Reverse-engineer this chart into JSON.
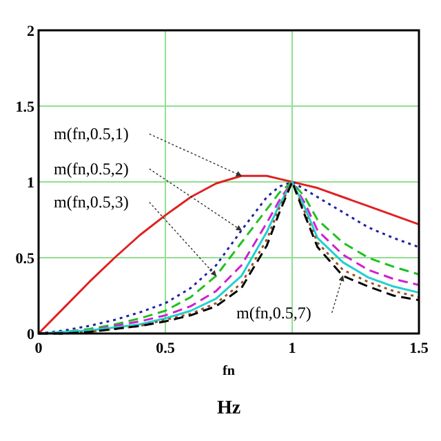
{
  "chart_data": {
    "type": "line",
    "xlabel": "fn",
    "x": [
      0,
      0.1,
      0.2,
      0.3,
      0.4,
      0.5,
      0.6,
      0.7,
      0.8,
      0.9,
      0.95,
      1,
      1.05,
      1.1,
      1.2,
      1.3,
      1.4,
      1.5
    ],
    "xlim": [
      0,
      1.5
    ],
    "xticks": [
      0,
      0.5,
      1,
      1.5
    ],
    "ylim": [
      0,
      2
    ],
    "yticks": [
      0,
      0.5,
      1,
      1.5,
      2
    ],
    "grid": true,
    "marker": "none",
    "series": [
      {
        "color": "#e02020",
        "line_style": "solid",
        "values": [
          0,
          0.17,
          0.34,
          0.5,
          0.65,
          0.78,
          0.9,
          0.99,
          1.04,
          1.04,
          1.02,
          1,
          0.98,
          0.96,
          0.9,
          0.84,
          0.78,
          0.72
        ]
      },
      {
        "color": "#2020a0",
        "line_style": "dotted",
        "values": [
          0,
          0.02,
          0.05,
          0.09,
          0.14,
          0.2,
          0.3,
          0.45,
          0.68,
          0.9,
          0.97,
          1,
          0.95,
          0.9,
          0.8,
          0.7,
          0.63,
          0.57
        ]
      },
      {
        "color": "#20c020",
        "line_style": "dashed",
        "values": [
          0,
          0.01,
          0.03,
          0.06,
          0.1,
          0.15,
          0.24,
          0.38,
          0.6,
          0.82,
          0.93,
          1,
          0.9,
          0.75,
          0.6,
          0.5,
          0.44,
          0.39
        ]
      },
      {
        "color": "#d020d0",
        "line_style": "dashed",
        "values": [
          0,
          0.01,
          0.02,
          0.05,
          0.08,
          0.12,
          0.18,
          0.28,
          0.45,
          0.73,
          0.88,
          1,
          0.86,
          0.68,
          0.52,
          0.42,
          0.36,
          0.32
        ]
      },
      {
        "color": "#20d0d0",
        "line_style": "solid",
        "values": [
          0,
          0.01,
          0.02,
          0.04,
          0.06,
          0.1,
          0.15,
          0.23,
          0.38,
          0.67,
          0.85,
          1,
          0.83,
          0.63,
          0.47,
          0.37,
          0.31,
          0.27
        ]
      },
      {
        "color": "#a05020",
        "line_style": "dotted",
        "values": [
          0,
          0,
          0.01,
          0.03,
          0.05,
          0.09,
          0.13,
          0.2,
          0.33,
          0.62,
          0.83,
          1,
          0.8,
          0.6,
          0.42,
          0.34,
          0.28,
          0.24
        ]
      },
      {
        "color": "#000000",
        "line_style": "dashed",
        "values": [
          0,
          0,
          0.01,
          0.03,
          0.05,
          0.08,
          0.12,
          0.18,
          0.3,
          0.58,
          0.8,
          1,
          0.78,
          0.57,
          0.38,
          0.31,
          0.25,
          0.22
        ]
      }
    ],
    "annotations": [
      {
        "text": "m(fn,0.5,1)",
        "x": 0.8,
        "y": 1.04
      },
      {
        "text": "m(fn,0.5,2)",
        "x": 0.8,
        "y": 0.68
      },
      {
        "text": "m(fn,0.5,3)",
        "x": 0.7,
        "y": 0.38
      },
      {
        "text": "m(fn,0.5,7)",
        "x": 1.2,
        "y": 0.38
      },
      "Hz"
    ]
  }
}
